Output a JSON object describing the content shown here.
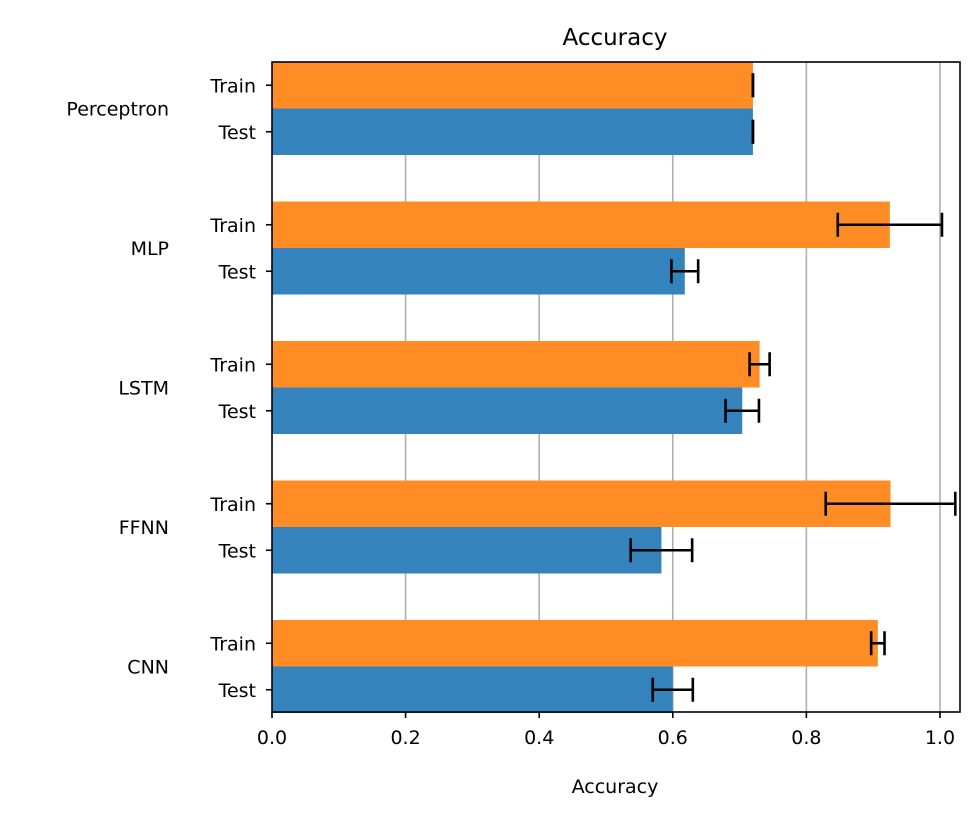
{
  "chart_data": {
    "type": "bar",
    "orientation": "horizontal",
    "title": "Accuracy",
    "xlabel": "Accuracy",
    "ylabel": "",
    "xlim": [
      0,
      1.03
    ],
    "x_ticks": [
      "0.0",
      "0.2",
      "0.4",
      "0.6",
      "0.8",
      "1.0"
    ],
    "x_tick_values": [
      0.0,
      0.2,
      0.4,
      0.6,
      0.8,
      1.0
    ],
    "grid": "vertical",
    "legend": "none",
    "categories": [
      "Perceptron",
      "MLP",
      "LSTM",
      "FFNN",
      "CNN"
    ],
    "sub_labels": [
      "Train",
      "Test"
    ],
    "series": [
      {
        "key": "Train",
        "color": "#ff8c25",
        "values": [
          0.72,
          0.925,
          0.73,
          0.926,
          0.907
        ],
        "errors": [
          0.0,
          0.078,
          0.015,
          0.097,
          0.01
        ]
      },
      {
        "key": "Test",
        "color": "#3483bd",
        "values": [
          0.72,
          0.618,
          0.704,
          0.583,
          0.6
        ],
        "errors": [
          0.0,
          0.02,
          0.025,
          0.046,
          0.03
        ]
      }
    ]
  }
}
